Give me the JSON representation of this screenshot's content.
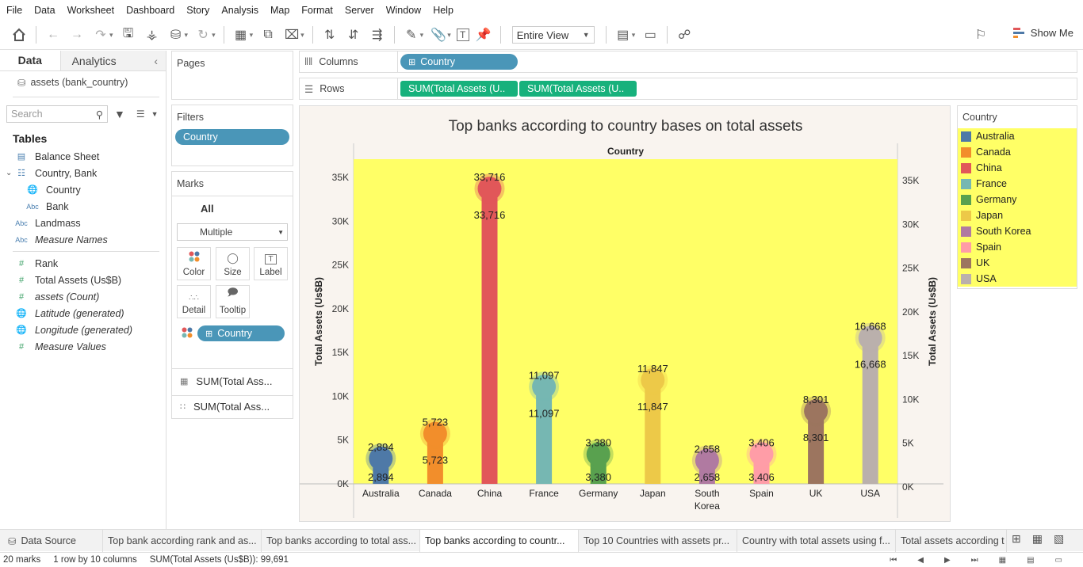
{
  "menu": [
    "File",
    "Data",
    "Worksheet",
    "Dashboard",
    "Story",
    "Analysis",
    "Map",
    "Format",
    "Server",
    "Window",
    "Help"
  ],
  "toolbar": {
    "fit_value": "Entire View",
    "show_me": "Show Me"
  },
  "left_pane": {
    "tab_data": "Data",
    "tab_analytics": "Analytics",
    "datasource": "assets (bank_country)",
    "search_placeholder": "Search",
    "tables_heading": "Tables",
    "fields": [
      {
        "icon": "table-icon",
        "label": "Balance Sheet",
        "italic": false,
        "indent": 0
      },
      {
        "icon": "hierarchy-icon",
        "label": "Country, Bank",
        "italic": false,
        "indent": 0
      },
      {
        "icon": "globe-icon",
        "label": "Country",
        "italic": false,
        "indent": 1
      },
      {
        "icon": "abc-icon",
        "label": "Bank",
        "italic": false,
        "indent": 1
      },
      {
        "icon": "abc-icon",
        "label": "Landmass",
        "italic": false,
        "indent": 0
      },
      {
        "icon": "abc-icon",
        "label": "Measure Names",
        "italic": true,
        "indent": 0
      },
      {
        "icon": "hash-icon",
        "label": "Rank",
        "italic": false,
        "indent": 0
      },
      {
        "icon": "hash-icon",
        "label": "Total Assets (Us$B)",
        "italic": false,
        "indent": 0
      },
      {
        "icon": "hash-icon",
        "label": "assets (Count)",
        "italic": true,
        "indent": 0
      },
      {
        "icon": "globe-icon",
        "label": "Latitude (generated)",
        "italic": true,
        "indent": 0
      },
      {
        "icon": "globe-icon",
        "label": "Longitude (generated)",
        "italic": true,
        "indent": 0
      },
      {
        "icon": "hash-icon",
        "label": "Measure Values",
        "italic": true,
        "indent": 0
      }
    ]
  },
  "cards": {
    "pages": "Pages",
    "filters": "Filters",
    "filter_pill": "Country",
    "marks": "Marks",
    "marks_all": "All",
    "mark_type": "Multiple",
    "mark_buttons": [
      "Color",
      "Size",
      "Label",
      "Detail",
      "Tooltip"
    ],
    "color_pill": "Country",
    "measure_1": "SUM(Total Ass...",
    "measure_2": "SUM(Total Ass..."
  },
  "shelves": {
    "columns_label": "Columns",
    "columns_pill": "Country",
    "rows_label": "Rows",
    "rows_pill_1": "SUM(Total Assets (U..",
    "rows_pill_2": "SUM(Total Assets (U.."
  },
  "legend": {
    "title": "Country",
    "items": [
      {
        "label": "Australia",
        "color": "#4e79a7"
      },
      {
        "label": "Canada",
        "color": "#f28e2b"
      },
      {
        "label": "China",
        "color": "#e15759"
      },
      {
        "label": "France",
        "color": "#76b7b2"
      },
      {
        "label": "Germany",
        "color": "#59a14f"
      },
      {
        "label": "Japan",
        "color": "#edc948"
      },
      {
        "label": "South Korea",
        "color": "#b07aa1"
      },
      {
        "label": "Spain",
        "color": "#ff9da7"
      },
      {
        "label": "UK",
        "color": "#9c755f"
      },
      {
        "label": "USA",
        "color": "#bab0ac"
      }
    ]
  },
  "chart_data": {
    "type": "bar",
    "title": "Top banks according to country bases on total assets",
    "header": "Country",
    "ylabel": "Total Assets (Us$B)",
    "ylim": [
      0,
      35000
    ],
    "yticks": [
      "0K",
      "5K",
      "10K",
      "15K",
      "20K",
      "25K",
      "30K",
      "35K"
    ],
    "categories": [
      "Australia",
      "Canada",
      "China",
      "France",
      "Germany",
      "Japan",
      "South Korea",
      "Spain",
      "UK",
      "USA"
    ],
    "values": [
      2894,
      5723,
      33716,
      11097,
      3380,
      11847,
      2658,
      3406,
      8301,
      16668
    ],
    "labels": [
      "2,894",
      "5,723",
      "33,716",
      "11,097",
      "3,380",
      "11,847",
      "2,658",
      "3,406",
      "8,301",
      "16,668"
    ],
    "colors": [
      "#4e79a7",
      "#f28e2b",
      "#e15759",
      "#76b7b2",
      "#59a14f",
      "#edc948",
      "#b07aa1",
      "#ff9da7",
      "#9c755f",
      "#bab0ac"
    ],
    "plot_background": "#ffff66"
  },
  "bottom_tabs": [
    {
      "label": "Data Source",
      "active": false
    },
    {
      "label": "Top bank according rank and as...",
      "active": false
    },
    {
      "label": "Top banks according to total ass...",
      "active": false
    },
    {
      "label": "Top banks according to countr...",
      "active": true
    },
    {
      "label": "Top 10 Countries with assets pr...",
      "active": false
    },
    {
      "label": "Country with total assets using f...",
      "active": false
    },
    {
      "label": "Total assets according t",
      "active": false
    }
  ],
  "status": {
    "marks": "20 marks",
    "dims": "1 row by 10 columns",
    "sum": "SUM(Total Assets (Us$B)): 99,691"
  }
}
